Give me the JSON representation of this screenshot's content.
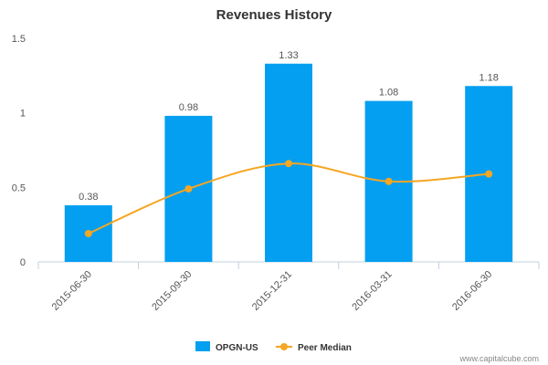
{
  "chart_data": {
    "type": "bar",
    "title": "Revenues History",
    "xlabel": "",
    "ylabel": "",
    "categories": [
      "2015-06-30",
      "2015-09-30",
      "2015-12-31",
      "2016-03-31",
      "2016-06-30"
    ],
    "ylim": [
      0,
      1.5
    ],
    "yticks": [
      "0",
      "0.5",
      "1",
      "1.5"
    ],
    "grid": false,
    "legend_position": "bottom",
    "series": [
      {
        "name": "OPGN-US",
        "type": "bar",
        "color": "#049FF1",
        "values": [
          0.38,
          0.98,
          1.33,
          1.08,
          1.18
        ],
        "labels": [
          "0.38",
          "0.98",
          "1.33",
          "1.08",
          "1.18"
        ]
      },
      {
        "name": "Peer Median",
        "type": "line",
        "color": "#F5A623",
        "values": [
          0.19,
          0.49,
          0.66,
          0.54,
          0.59
        ]
      }
    ]
  },
  "watermark": "www.capitalcube.com"
}
